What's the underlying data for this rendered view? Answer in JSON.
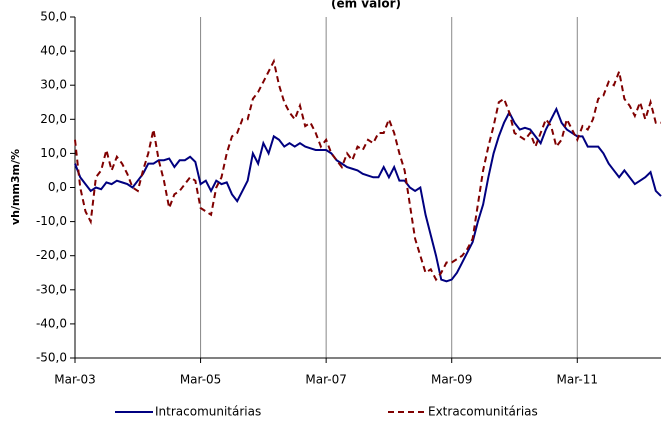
{
  "chart_data": {
    "type": "line",
    "title": "(em valor)",
    "y_label": "vh/mm3m/%",
    "categories": [
      "Mar-03",
      null,
      null,
      null,
      null,
      null,
      null,
      null,
      null,
      null,
      null,
      null,
      null,
      null,
      null,
      null,
      null,
      null,
      null,
      null,
      null,
      null,
      null,
      null,
      "Mar-05",
      null,
      null,
      null,
      null,
      null,
      null,
      null,
      null,
      null,
      null,
      null,
      null,
      null,
      null,
      null,
      null,
      null,
      null,
      null,
      null,
      null,
      null,
      null,
      "Mar-07",
      null,
      null,
      null,
      null,
      null,
      null,
      null,
      null,
      null,
      null,
      null,
      null,
      null,
      null,
      null,
      null,
      null,
      null,
      null,
      null,
      null,
      null,
      null,
      "Mar-09",
      null,
      null,
      null,
      null,
      null,
      null,
      null,
      null,
      null,
      null,
      null,
      null,
      null,
      null,
      null,
      null,
      null,
      null,
      null,
      null,
      null,
      null,
      null,
      "Mar-11",
      null,
      null,
      null,
      null,
      null,
      null,
      null,
      null,
      null,
      null,
      null,
      null,
      null,
      null,
      null,
      null
    ],
    "series": [
      {
        "name": "Intracomunitárias",
        "color": "#000080",
        "dash": "solid",
        "values": [
          7,
          3,
          1,
          -1,
          0,
          -0.5,
          1.5,
          1,
          2,
          1.5,
          1,
          0,
          2,
          4,
          7,
          7,
          8,
          8,
          8.5,
          6,
          8,
          8,
          9,
          7.5,
          1,
          2,
          -1,
          2,
          1,
          1.5,
          -2,
          -4,
          -1,
          2,
          10,
          7,
          13,
          10,
          15,
          14,
          12,
          13,
          12,
          13,
          12,
          11.5,
          11,
          11,
          11,
          10,
          8,
          7,
          6,
          5.5,
          5,
          4,
          3.5,
          3,
          3,
          6,
          3,
          6,
          2,
          2,
          0,
          -1,
          0,
          -8,
          -14,
          -20,
          -27,
          -27.5,
          -27,
          -25,
          -22,
          -19,
          -16,
          -10,
          -5,
          3,
          10,
          15,
          19,
          22,
          19,
          17,
          17.5,
          17,
          15,
          13,
          17,
          20,
          23,
          19,
          17,
          16,
          15,
          15,
          12,
          12,
          12,
          10,
          7,
          5,
          3,
          5,
          3,
          1,
          2,
          3,
          4.5,
          -1,
          -2.5
        ]
      },
      {
        "name": "Extracomunitárias",
        "color": "#800000",
        "dash": "dashed",
        "values": [
          14,
          0,
          -7,
          -10,
          3,
          5,
          11,
          5,
          9,
          7,
          4,
          0,
          -1,
          5,
          10,
          17,
          8,
          2,
          -6,
          -2,
          -1,
          1,
          3,
          2,
          -6,
          -7,
          -8,
          0,
          3,
          10,
          15,
          16,
          20,
          20,
          26,
          28,
          31,
          34,
          37,
          30,
          25,
          22,
          20,
          24,
          18,
          19,
          16,
          12,
          14,
          10,
          8,
          6,
          10,
          8,
          12,
          11,
          14,
          13,
          16,
          16,
          20,
          16,
          10,
          5,
          -5,
          -15,
          -20,
          -25,
          -24,
          -27,
          -25,
          -22,
          -22,
          -21,
          -20,
          -18,
          -15,
          -5,
          5,
          12,
          18,
          25,
          26,
          22,
          16,
          15,
          14,
          16,
          12,
          16,
          20,
          18,
          12,
          14,
          20,
          17,
          14,
          18,
          17,
          20,
          26,
          27,
          31,
          30,
          34,
          26,
          24,
          21,
          25,
          20,
          25,
          19,
          19
        ]
      }
    ],
    "ylim": [
      -50,
      50
    ],
    "yticks": [
      {
        "value": -50,
        "label": "-50,0"
      },
      {
        "value": -40,
        "label": "-40,0"
      },
      {
        "value": -30,
        "label": "-30,0"
      },
      {
        "value": -20,
        "label": "-20,0"
      },
      {
        "value": -10,
        "label": "-10,0"
      },
      {
        "value": 0,
        "label": "0,0"
      },
      {
        "value": 10,
        "label": "10,0"
      },
      {
        "value": 20,
        "label": "20,0"
      },
      {
        "value": 30,
        "label": "30,0"
      },
      {
        "value": 40,
        "label": "40,0"
      },
      {
        "value": 50,
        "label": "50,0"
      }
    ],
    "grid": "x",
    "legend": "bottom"
  }
}
